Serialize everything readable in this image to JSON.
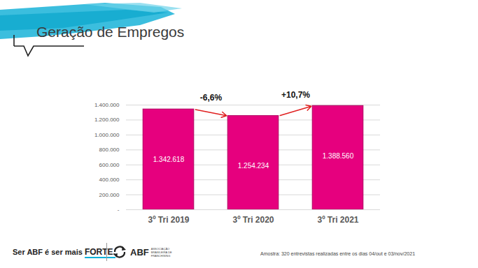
{
  "chart_data": {
    "type": "bar",
    "title": "Geração de Empregos",
    "categories": [
      "3º Tri 2019",
      "3º Tri 2020",
      "3º Tri 2021"
    ],
    "values": [
      1342618,
      1254234,
      1388560
    ],
    "value_labels": [
      "1.342.618",
      "1.254.234",
      "1.388.560"
    ],
    "data_labels": true,
    "color": "#e6007e",
    "ylim": [
      0,
      1400000
    ],
    "yticks": [
      {
        "value": 0,
        "label": "-"
      },
      {
        "value": 200000,
        "label": "200.000"
      },
      {
        "value": 400000,
        "label": "400.000"
      },
      {
        "value": 600000,
        "label": "600.000"
      },
      {
        "value": 800000,
        "label": "800.000"
      },
      {
        "value": 1000000,
        "label": "1.000.000"
      },
      {
        "value": 1200000,
        "label": "1.200.000"
      },
      {
        "value": 1400000,
        "label": "1.400.000"
      }
    ],
    "grid": true,
    "annotations": [
      "-6,6%",
      "+10,7%"
    ]
  },
  "footer": {
    "tagline": [
      "Ser ABF é ser mais ",
      "FORTE."
    ],
    "logo": "ABF",
    "logo_subtitle": "ASSOCIAÇÃO BRASILEIRA DE FRANCHISING",
    "note": "Amostra:  320 entrevistas realizadas entre os dias 04/out e 03/nov/2021"
  }
}
